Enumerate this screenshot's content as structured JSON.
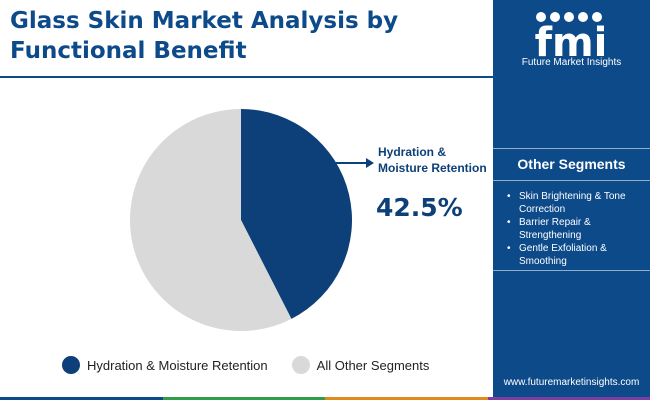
{
  "title": "Glass Skin Market Analysis by Functional Benefit",
  "callout": {
    "label": "Hydration & Moisture Retention",
    "value": "42.5%"
  },
  "chart_data": {
    "type": "pie",
    "title": "Glass Skin Market Analysis by Functional Benefit",
    "slices": [
      {
        "name": "Hydration & Moisture Retention",
        "value": 42.5,
        "color": "#0d3f78"
      },
      {
        "name": "All Other Segments",
        "value": 57.5,
        "color": "#d9d9d9"
      }
    ],
    "legend_position": "bottom",
    "start_angle": "top, clockwise"
  },
  "legend": [
    {
      "label": "Hydration & Moisture Retention",
      "color": "#0d3f78"
    },
    {
      "label": "All Other Segments",
      "color": "#d9d9d9"
    }
  ],
  "sidebar": {
    "logo_text": "fmi",
    "logo_caption": "Future Market Insights",
    "segments_heading": "Other Segments",
    "segments": [
      "Skin Brightening & Tone Correction",
      "Barrier Repair & Strengthening",
      "Gentle Exfoliation & Smoothing"
    ],
    "website": "www.futuremarketinsights.com"
  },
  "colors": {
    "brand_blue": "#0d4a8a",
    "slice_primary": "#0d3f78",
    "slice_other": "#d9d9d9"
  }
}
